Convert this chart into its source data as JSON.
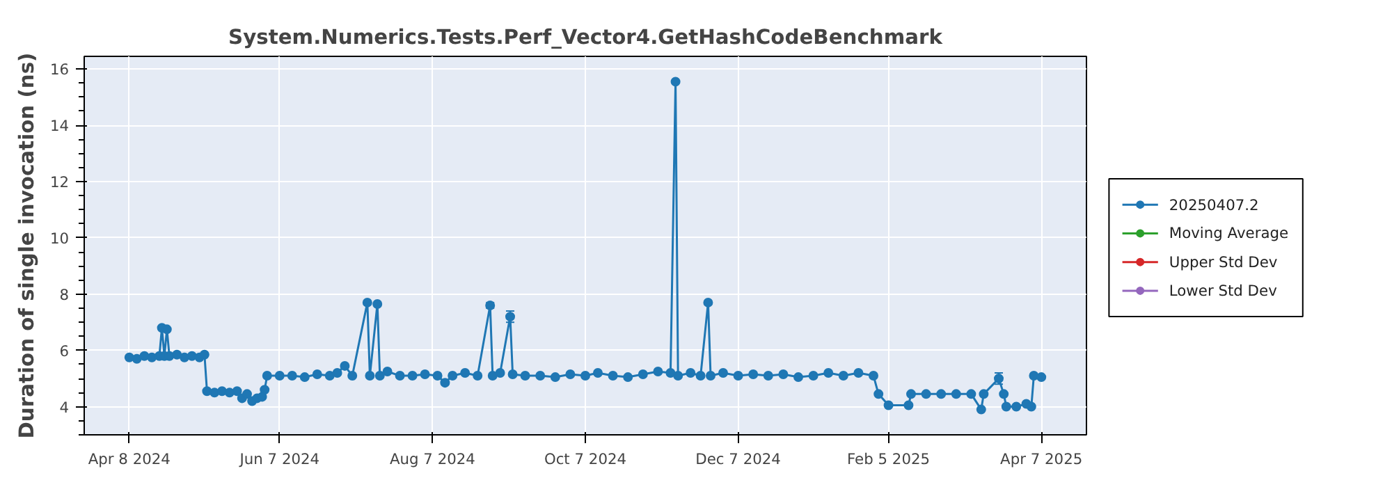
{
  "chart_data": {
    "type": "line",
    "title": "System.Numerics.Tests.Perf_Vector4.GetHashCodeBenchmark",
    "ylabel": "Duration of single invocation (ns)",
    "x": [
      "2024-04-08",
      "2024-04-11",
      "2024-04-14",
      "2024-04-17",
      "2024-04-20",
      "2024-04-21",
      "2024-04-22",
      "2024-04-23",
      "2024-04-24",
      "2024-04-27",
      "2024-04-30",
      "2024-05-03",
      "2024-05-06",
      "2024-05-08",
      "2024-05-09",
      "2024-05-12",
      "2024-05-15",
      "2024-05-18",
      "2024-05-21",
      "2024-05-23",
      "2024-05-25",
      "2024-05-27",
      "2024-05-29",
      "2024-05-31",
      "2024-06-01",
      "2024-06-02",
      "2024-06-07",
      "2024-06-12",
      "2024-06-17",
      "2024-06-22",
      "2024-06-27",
      "2024-06-30",
      "2024-07-03",
      "2024-07-06",
      "2024-07-12",
      "2024-07-13",
      "2024-07-16",
      "2024-07-17",
      "2024-07-20",
      "2024-07-25",
      "2024-07-30",
      "2024-08-04",
      "2024-08-09",
      "2024-08-12",
      "2024-08-15",
      "2024-08-20",
      "2024-08-25",
      "2024-08-30",
      "2024-08-31",
      "2024-09-03",
      "2024-09-07",
      "2024-09-08",
      "2024-09-13",
      "2024-09-19",
      "2024-09-25",
      "2024-10-01",
      "2024-10-07",
      "2024-10-12",
      "2024-10-18",
      "2024-10-24",
      "2024-10-30",
      "2024-11-05",
      "2024-11-10",
      "2024-11-12",
      "2024-11-13",
      "2024-11-18",
      "2024-11-22",
      "2024-11-25",
      "2024-11-26",
      "2024-12-01",
      "2024-12-07",
      "2024-12-13",
      "2024-12-19",
      "2024-12-25",
      "2024-12-31",
      "2025-01-06",
      "2025-01-12",
      "2025-01-18",
      "2025-01-24",
      "2025-01-30",
      "2025-02-01",
      "2025-02-05",
      "2025-02-13",
      "2025-02-14",
      "2025-02-20",
      "2025-02-26",
      "2025-03-04",
      "2025-03-10",
      "2025-03-14",
      "2025-03-15",
      "2025-03-21",
      "2025-03-23",
      "2025-03-24",
      "2025-03-28",
      "2025-04-01",
      "2025-04-03",
      "2025-04-04",
      "2025-04-07"
    ],
    "series": [
      {
        "name": "20250407.2",
        "color": "#1f77b4",
        "values": [
          5.75,
          5.7,
          5.8,
          5.75,
          5.8,
          6.8,
          5.8,
          6.75,
          5.8,
          5.85,
          5.75,
          5.8,
          5.75,
          5.85,
          4.55,
          4.5,
          4.55,
          4.5,
          4.55,
          4.3,
          4.45,
          4.2,
          4.3,
          4.35,
          4.6,
          5.1,
          5.1,
          5.1,
          5.05,
          5.15,
          5.1,
          5.2,
          5.45,
          5.1,
          7.7,
          5.1,
          7.65,
          5.1,
          5.25,
          5.1,
          5.1,
          5.15,
          5.1,
          4.85,
          5.1,
          5.2,
          5.1,
          7.6,
          5.1,
          5.2,
          7.2,
          5.15,
          5.1,
          5.1,
          5.05,
          5.15,
          5.1,
          5.2,
          5.1,
          5.05,
          5.15,
          5.25,
          5.2,
          15.55,
          5.1,
          5.2,
          5.1,
          7.7,
          5.1,
          5.2,
          5.1,
          5.15,
          5.1,
          5.15,
          5.05,
          5.1,
          5.2,
          5.1,
          5.2,
          5.1,
          4.45,
          4.05,
          4.05,
          4.45,
          4.45,
          4.45,
          4.45,
          4.45,
          3.9,
          4.45,
          5.0,
          4.45,
          4.0,
          4.0,
          4.1,
          4.0,
          5.1,
          5.05
        ],
        "errors": [
          null,
          null,
          null,
          null,
          null,
          null,
          null,
          null,
          null,
          null,
          null,
          null,
          null,
          null,
          null,
          null,
          null,
          null,
          null,
          null,
          null,
          null,
          null,
          null,
          null,
          null,
          null,
          null,
          null,
          null,
          null,
          null,
          null,
          null,
          null,
          null,
          null,
          null,
          null,
          null,
          null,
          null,
          null,
          null,
          null,
          null,
          null,
          0.1,
          null,
          null,
          0.2,
          null,
          null,
          null,
          null,
          null,
          null,
          null,
          null,
          null,
          null,
          null,
          null,
          null,
          null,
          null,
          null,
          null,
          null,
          null,
          null,
          null,
          null,
          null,
          null,
          null,
          null,
          null,
          null,
          null,
          null,
          null,
          null,
          null,
          null,
          null,
          null,
          null,
          null,
          null,
          0.2,
          null,
          null,
          null,
          null,
          null,
          null,
          null
        ]
      },
      {
        "name": "Moving Average",
        "color": "#2ca02c",
        "values": [
          null,
          null,
          null,
          null,
          null,
          null,
          null,
          null,
          null,
          null,
          null,
          null,
          null,
          null,
          null,
          null,
          null,
          null,
          null,
          null,
          null,
          null,
          null,
          null,
          null,
          null,
          null,
          null,
          null,
          null,
          null,
          null,
          null,
          null,
          null,
          null,
          null,
          null,
          null,
          null,
          null,
          null,
          null,
          null,
          null,
          null,
          null,
          null,
          null,
          null,
          null,
          null,
          null,
          null,
          null,
          null,
          null,
          null,
          null,
          null,
          null,
          null,
          null,
          null,
          null,
          null,
          null,
          null,
          null,
          null,
          null,
          null,
          null,
          null,
          null,
          null,
          null,
          null,
          null,
          null,
          null,
          null,
          null,
          null,
          null,
          null,
          null,
          null,
          null,
          null,
          null,
          null,
          null,
          null,
          null,
          null,
          null,
          null
        ]
      },
      {
        "name": "Upper Std Dev",
        "color": "#d62728",
        "values": [
          null,
          null,
          null,
          null,
          null,
          null,
          null,
          null,
          null,
          null,
          null,
          null,
          null,
          null,
          null,
          null,
          null,
          null,
          null,
          null,
          null,
          null,
          null,
          null,
          null,
          null,
          null,
          null,
          null,
          null,
          null,
          null,
          null,
          null,
          null,
          null,
          null,
          null,
          null,
          null,
          null,
          null,
          null,
          null,
          null,
          null,
          null,
          null,
          null,
          null,
          null,
          null,
          null,
          null,
          null,
          null,
          null,
          null,
          null,
          null,
          null,
          null,
          null,
          null,
          null,
          null,
          null,
          null,
          null,
          null,
          null,
          null,
          null,
          null,
          null,
          null,
          null,
          null,
          null,
          null,
          null,
          null,
          null,
          null,
          null,
          null,
          null,
          null,
          null,
          null,
          null,
          null,
          null,
          null,
          null,
          null,
          null,
          null
        ]
      },
      {
        "name": "Lower Std Dev",
        "color": "#9467bd",
        "values": [
          null,
          null,
          null,
          null,
          null,
          null,
          null,
          null,
          null,
          null,
          null,
          null,
          null,
          null,
          null,
          null,
          null,
          null,
          null,
          null,
          null,
          null,
          null,
          null,
          null,
          null,
          null,
          null,
          null,
          null,
          null,
          null,
          null,
          null,
          null,
          null,
          null,
          null,
          null,
          null,
          null,
          null,
          null,
          null,
          null,
          null,
          null,
          null,
          null,
          null,
          null,
          null,
          null,
          null,
          null,
          null,
          null,
          null,
          null,
          null,
          null,
          null,
          null,
          null,
          null,
          null,
          null,
          null,
          null,
          null,
          null,
          null,
          null,
          null,
          null,
          null,
          null,
          null,
          null,
          null,
          null,
          null,
          null,
          null,
          null,
          null,
          null,
          null,
          null,
          null,
          null,
          null,
          null,
          null,
          null,
          null,
          null,
          null
        ]
      }
    ],
    "xlim": [
      "2024-03-21",
      "2025-04-25"
    ],
    "xticks": [
      {
        "value": "2024-04-08",
        "label": "Apr 8 2024"
      },
      {
        "value": "2024-06-07",
        "label": "Jun 7 2024"
      },
      {
        "value": "2024-08-07",
        "label": "Aug 7 2024"
      },
      {
        "value": "2024-10-07",
        "label": "Oct 7 2024"
      },
      {
        "value": "2024-12-07",
        "label": "Dec 7 2024"
      },
      {
        "value": "2025-02-05",
        "label": "Feb 5 2025"
      },
      {
        "value": "2025-04-07",
        "label": "Apr 7 2025"
      }
    ],
    "ylim": [
      3.0,
      16.45
    ],
    "yticks": [
      4,
      6,
      8,
      10,
      12,
      14,
      16
    ],
    "grid": true,
    "legend": "right",
    "marker": "circle",
    "line_style": "solid"
  }
}
